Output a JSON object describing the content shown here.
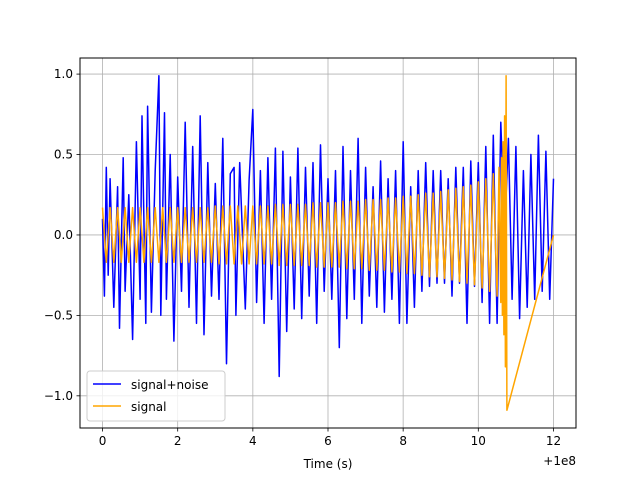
{
  "chart_data": {
    "type": "line",
    "title": "",
    "xlabel": "Time (s)",
    "ylabel": "",
    "x_offset_label": "+1e8",
    "xlim": [
      -0.6,
      12.6
    ],
    "ylim": [
      -1.2,
      1.1
    ],
    "x_ticks": [
      0,
      2,
      4,
      6,
      8,
      10,
      12
    ],
    "x_tick_labels": [
      "0",
      "2",
      "4",
      "6",
      "8",
      "10",
      "12"
    ],
    "y_ticks": [
      -1.0,
      -0.5,
      0.0,
      0.5,
      1.0
    ],
    "y_tick_labels": [
      "−1.0",
      "−0.5",
      "0.0",
      "0.5",
      "1.0"
    ],
    "grid": true,
    "legend_position": "lower-left",
    "series": [
      {
        "name": "signal+noise",
        "color": "#0000ff",
        "x": [
          0.0,
          0.05,
          0.1,
          0.15,
          0.2,
          0.3,
          0.4,
          0.45,
          0.55,
          0.6,
          0.7,
          0.8,
          0.9,
          1.0,
          1.05,
          1.15,
          1.2,
          1.3,
          1.4,
          1.5,
          1.55,
          1.65,
          1.7,
          1.8,
          1.9,
          2.0,
          2.1,
          2.2,
          2.3,
          2.4,
          2.5,
          2.6,
          2.7,
          2.8,
          2.9,
          3.0,
          3.1,
          3.2,
          3.3,
          3.4,
          3.5,
          3.55,
          3.65,
          3.8,
          3.9,
          4.0,
          4.1,
          4.2,
          4.3,
          4.4,
          4.5,
          4.6,
          4.7,
          4.8,
          4.9,
          5.0,
          5.1,
          5.2,
          5.3,
          5.4,
          5.5,
          5.6,
          5.7,
          5.8,
          5.9,
          6.0,
          6.1,
          6.2,
          6.3,
          6.4,
          6.5,
          6.6,
          6.7,
          6.8,
          6.9,
          7.0,
          7.1,
          7.2,
          7.3,
          7.4,
          7.5,
          7.6,
          7.7,
          7.8,
          7.9,
          8.0,
          8.1,
          8.2,
          8.3,
          8.4,
          8.5,
          8.6,
          8.7,
          8.8,
          8.9,
          9.0,
          9.1,
          9.2,
          9.3,
          9.4,
          9.5,
          9.6,
          9.7,
          9.8,
          9.9,
          10.0,
          10.1,
          10.2,
          10.3,
          10.4,
          10.5,
          10.6,
          10.7,
          10.8,
          10.9,
          11.0,
          11.1,
          11.2,
          11.3,
          11.4,
          11.5,
          11.6,
          11.7,
          11.8,
          11.9,
          12.0
        ],
        "values": [
          0.1,
          -0.38,
          0.42,
          -0.25,
          0.35,
          -0.45,
          0.3,
          -0.58,
          0.48,
          -0.35,
          0.25,
          -0.65,
          0.58,
          -0.4,
          0.74,
          -0.55,
          0.8,
          -0.48,
          0.4,
          0.99,
          -0.5,
          0.76,
          -0.4,
          0.5,
          -0.66,
          0.36,
          -0.35,
          0.7,
          -0.45,
          0.55,
          -0.55,
          0.74,
          -0.62,
          0.45,
          -0.38,
          0.32,
          -0.4,
          0.6,
          -0.8,
          0.38,
          0.42,
          -0.5,
          0.45,
          -0.46,
          0.34,
          0.78,
          -0.42,
          0.4,
          -0.55,
          0.48,
          -0.4,
          0.54,
          -0.88,
          0.52,
          -0.6,
          0.36,
          -0.46,
          0.54,
          -0.52,
          0.42,
          -0.38,
          0.45,
          -0.55,
          0.56,
          -0.35,
          0.35,
          -0.4,
          0.4,
          -0.7,
          0.55,
          -0.52,
          0.4,
          -0.4,
          0.6,
          -0.55,
          0.42,
          -0.38,
          0.3,
          -0.45,
          0.46,
          -0.48,
          0.35,
          -0.4,
          0.4,
          -0.55,
          0.58,
          -0.55,
          0.3,
          -0.45,
          0.4,
          -0.35,
          0.45,
          -0.32,
          0.4,
          -0.3,
          0.4,
          -0.3,
          0.35,
          -0.38,
          0.42,
          -0.3,
          0.42,
          -0.55,
          0.46,
          -0.32,
          0.45,
          -0.42,
          0.55,
          -0.55,
          0.62,
          -0.55,
          0.7,
          0.0,
          0.6,
          -0.4,
          0.55,
          -0.52,
          0.4,
          -0.45,
          0.5,
          -0.4,
          0.62,
          -0.35,
          0.52,
          -0.4,
          0.35
        ]
      },
      {
        "name": "signal",
        "color": "#ffa500",
        "x": [
          0.0,
          0.1,
          0.2,
          0.3,
          0.4,
          0.5,
          0.6,
          0.7,
          0.8,
          0.9,
          1.0,
          1.1,
          1.2,
          1.3,
          1.4,
          1.5,
          1.6,
          1.7,
          1.8,
          1.9,
          2.0,
          2.1,
          2.2,
          2.3,
          2.4,
          2.5,
          2.6,
          2.7,
          2.8,
          2.9,
          3.0,
          3.1,
          3.2,
          3.3,
          3.4,
          3.5,
          3.6,
          3.7,
          3.8,
          3.9,
          4.0,
          4.1,
          4.2,
          4.3,
          4.4,
          4.5,
          4.6,
          4.7,
          4.8,
          4.9,
          5.0,
          5.1,
          5.2,
          5.3,
          5.4,
          5.5,
          5.6,
          5.7,
          5.8,
          5.9,
          6.0,
          6.1,
          6.2,
          6.3,
          6.4,
          6.5,
          6.6,
          6.7,
          6.8,
          6.9,
          7.0,
          7.1,
          7.2,
          7.3,
          7.4,
          7.5,
          7.6,
          7.7,
          7.8,
          7.9,
          8.0,
          8.1,
          8.2,
          8.3,
          8.4,
          8.5,
          8.6,
          8.7,
          8.8,
          8.9,
          9.0,
          9.1,
          9.2,
          9.3,
          9.4,
          9.5,
          9.6,
          9.7,
          9.8,
          9.9,
          10.0,
          10.1,
          10.2,
          10.3,
          10.4,
          10.5,
          10.55,
          10.6,
          10.62,
          10.64,
          10.66,
          10.68,
          10.7,
          10.72,
          10.74,
          10.76,
          12.0
        ],
        "values": [
          0.17,
          -0.17,
          0.17,
          -0.17,
          0.17,
          -0.17,
          0.17,
          -0.17,
          0.17,
          -0.17,
          0.17,
          -0.17,
          0.17,
          -0.17,
          0.17,
          -0.17,
          0.17,
          -0.17,
          0.17,
          -0.17,
          0.17,
          -0.17,
          0.17,
          -0.17,
          0.17,
          -0.17,
          0.17,
          -0.17,
          0.17,
          -0.17,
          0.18,
          -0.18,
          0.18,
          -0.18,
          0.18,
          -0.18,
          0.18,
          -0.18,
          0.18,
          -0.18,
          0.18,
          -0.18,
          0.18,
          -0.18,
          0.18,
          -0.18,
          0.19,
          -0.19,
          0.19,
          -0.19,
          0.19,
          -0.19,
          0.19,
          -0.19,
          0.19,
          -0.19,
          0.2,
          -0.2,
          0.2,
          -0.2,
          0.2,
          -0.2,
          0.2,
          -0.2,
          0.21,
          -0.21,
          0.21,
          -0.21,
          0.21,
          -0.21,
          0.22,
          -0.22,
          0.22,
          -0.22,
          0.22,
          -0.22,
          0.23,
          -0.23,
          0.23,
          -0.23,
          0.24,
          -0.24,
          0.24,
          -0.24,
          0.25,
          -0.25,
          0.26,
          -0.26,
          0.26,
          -0.26,
          0.27,
          -0.27,
          0.28,
          -0.28,
          0.29,
          -0.29,
          0.3,
          -0.3,
          0.31,
          -0.31,
          0.33,
          -0.33,
          0.35,
          -0.35,
          0.38,
          -0.38,
          0.42,
          -0.42,
          0.48,
          -0.5,
          0.58,
          -0.62,
          0.74,
          -0.82,
          0.99,
          -1.09,
          0.0
        ]
      }
    ]
  }
}
